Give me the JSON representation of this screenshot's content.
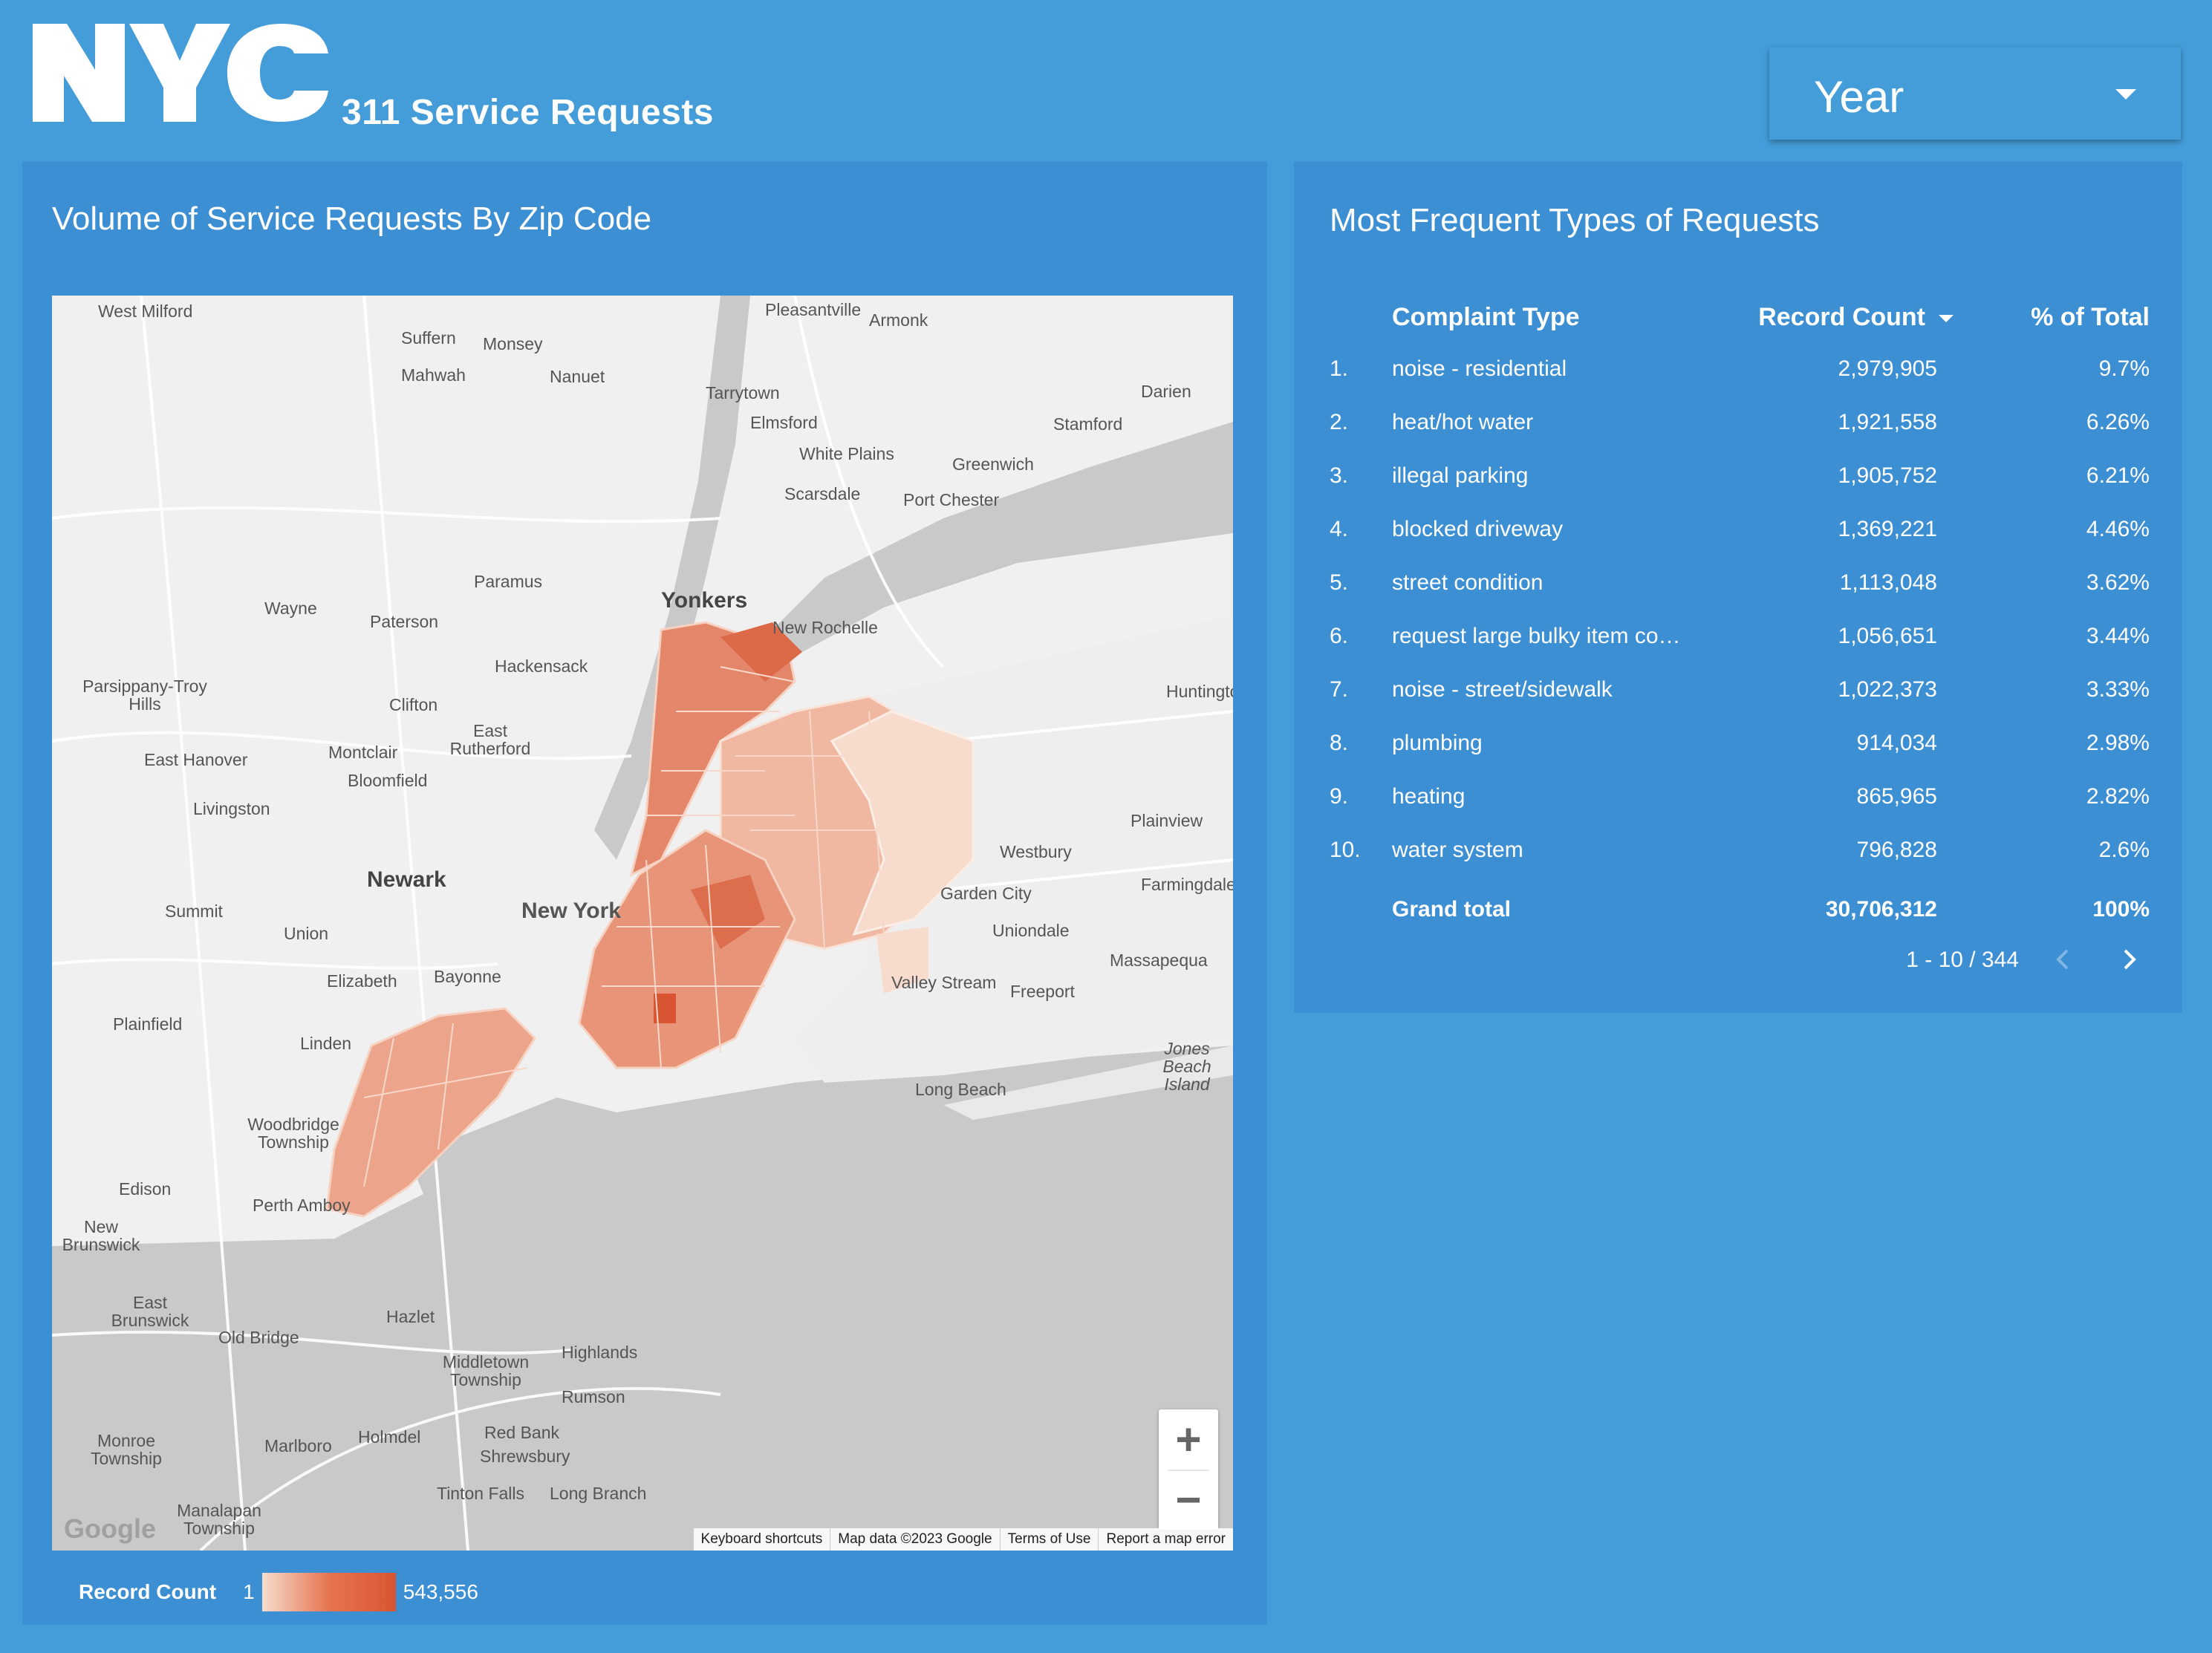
{
  "header": {
    "logo_text": "NYC",
    "title": "311 Service Requests"
  },
  "year_filter": {
    "label": "Year"
  },
  "map_panel": {
    "title": "Volume of Service Requests By Zip Code",
    "place_labels": [
      {
        "id": "west-milford",
        "text": "West Milford"
      },
      {
        "id": "pleasantville",
        "text": "Pleasantville"
      },
      {
        "id": "armonk",
        "text": "Armonk"
      },
      {
        "id": "suffern",
        "text": "Suffern"
      },
      {
        "id": "monsey",
        "text": "Monsey"
      },
      {
        "id": "mahwah",
        "text": "Mahwah"
      },
      {
        "id": "nanuet",
        "text": "Nanuet"
      },
      {
        "id": "tarrytown",
        "text": "Tarrytown"
      },
      {
        "id": "darien",
        "text": "Darien"
      },
      {
        "id": "elmsford",
        "text": "Elmsford"
      },
      {
        "id": "stamford",
        "text": "Stamford"
      },
      {
        "id": "white-plains",
        "text": "White Plains"
      },
      {
        "id": "greenwich",
        "text": "Greenwich"
      },
      {
        "id": "scarsdale",
        "text": "Scarsdale"
      },
      {
        "id": "port-chester",
        "text": "Port Chester"
      },
      {
        "id": "paramus",
        "text": "Paramus"
      },
      {
        "id": "yonkers",
        "text": "Yonkers"
      },
      {
        "id": "wayne",
        "text": "Wayne"
      },
      {
        "id": "paterson",
        "text": "Paterson"
      },
      {
        "id": "new-rochelle",
        "text": "New Rochelle"
      },
      {
        "id": "hackensack",
        "text": "Hackensack"
      },
      {
        "id": "parsippany",
        "text": "Parsippany-Troy Hills"
      },
      {
        "id": "clifton",
        "text": "Clifton"
      },
      {
        "id": "huntington",
        "text": "Huntington"
      },
      {
        "id": "east-rutherford",
        "text": "East Rutherford"
      },
      {
        "id": "east-hanover",
        "text": "East Hanover"
      },
      {
        "id": "montclair",
        "text": "Montclair"
      },
      {
        "id": "bloomfield",
        "text": "Bloomfield"
      },
      {
        "id": "livingston",
        "text": "Livingston"
      },
      {
        "id": "plainview",
        "text": "Plainview"
      },
      {
        "id": "westbury",
        "text": "Westbury"
      },
      {
        "id": "garden-city",
        "text": "Garden City"
      },
      {
        "id": "farmingdale",
        "text": "Farmingdale"
      },
      {
        "id": "newark",
        "text": "Newark"
      },
      {
        "id": "summit",
        "text": "Summit"
      },
      {
        "id": "union",
        "text": "Union"
      },
      {
        "id": "uniondale",
        "text": "Uniondale"
      },
      {
        "id": "massapequa",
        "text": "Massapequa"
      },
      {
        "id": "elizabeth",
        "text": "Elizabeth"
      },
      {
        "id": "bayonne",
        "text": "Bayonne"
      },
      {
        "id": "valley-stream",
        "text": "Valley Stream"
      },
      {
        "id": "freeport",
        "text": "Freeport"
      },
      {
        "id": "plainfield",
        "text": "Plainfield"
      },
      {
        "id": "linden",
        "text": "Linden"
      },
      {
        "id": "jones-beach",
        "text": "Jones Beach Island"
      },
      {
        "id": "long-beach",
        "text": "Long Beach"
      },
      {
        "id": "woodbridge",
        "text": "Woodbridge Township"
      },
      {
        "id": "edison",
        "text": "Edison"
      },
      {
        "id": "perth-amboy",
        "text": "Perth Amboy"
      },
      {
        "id": "new-brunswick",
        "text": "New Brunswick"
      },
      {
        "id": "east-brunswick",
        "text": "East Brunswick"
      },
      {
        "id": "old-bridge",
        "text": "Old Bridge"
      },
      {
        "id": "hazlet",
        "text": "Hazlet"
      },
      {
        "id": "highlands",
        "text": "Highlands"
      },
      {
        "id": "middletown",
        "text": "Middletown Township"
      },
      {
        "id": "rumson",
        "text": "Rumson"
      },
      {
        "id": "monroe",
        "text": "Monroe Township"
      },
      {
        "id": "marlboro",
        "text": "Marlboro"
      },
      {
        "id": "holmdel",
        "text": "Holmdel"
      },
      {
        "id": "red-bank",
        "text": "Red Bank"
      },
      {
        "id": "shrewsbury",
        "text": "Shrewsbury"
      },
      {
        "id": "tinton-falls",
        "text": "Tinton Falls"
      },
      {
        "id": "long-branch",
        "text": "Long Branch"
      },
      {
        "id": "manalapan",
        "text": "Manalapan Township"
      },
      {
        "id": "new-york",
        "text": "New York"
      }
    ],
    "attribution": [
      "Keyboard shortcuts",
      "Map data ©2023 Google",
      "Terms of Use",
      "Report a map error"
    ],
    "google_logo": "Google",
    "legend": {
      "label": "Record Count",
      "min": "1",
      "max": "543,556"
    }
  },
  "table_panel": {
    "title": "Most Frequent Types of Requests",
    "columns": {
      "type": "Complaint Type",
      "count": "Record Count",
      "pct": "% of Total"
    },
    "rows": [
      {
        "num": "1.",
        "type": "noise - residential",
        "count": "2,979,905",
        "pct": "9.7%"
      },
      {
        "num": "2.",
        "type": "heat/hot water",
        "count": "1,921,558",
        "pct": "6.26%"
      },
      {
        "num": "3.",
        "type": "illegal parking",
        "count": "1,905,752",
        "pct": "6.21%"
      },
      {
        "num": "4.",
        "type": "blocked driveway",
        "count": "1,369,221",
        "pct": "4.46%"
      },
      {
        "num": "5.",
        "type": "street condition",
        "count": "1,113,048",
        "pct": "3.62%"
      },
      {
        "num": "6.",
        "type": "request large bulky item co…",
        "count": "1,056,651",
        "pct": "3.44%"
      },
      {
        "num": "7.",
        "type": "noise - street/sidewalk",
        "count": "1,022,373",
        "pct": "3.33%"
      },
      {
        "num": "8.",
        "type": "plumbing",
        "count": "914,034",
        "pct": "2.98%"
      },
      {
        "num": "9.",
        "type": "heating",
        "count": "865,965",
        "pct": "2.82%"
      },
      {
        "num": "10.",
        "type": "water system",
        "count": "796,828",
        "pct": "2.6%"
      }
    ],
    "total": {
      "label": "Grand total",
      "count": "30,706,312",
      "pct": "100%"
    },
    "pagination": "1 - 10 / 344"
  }
}
